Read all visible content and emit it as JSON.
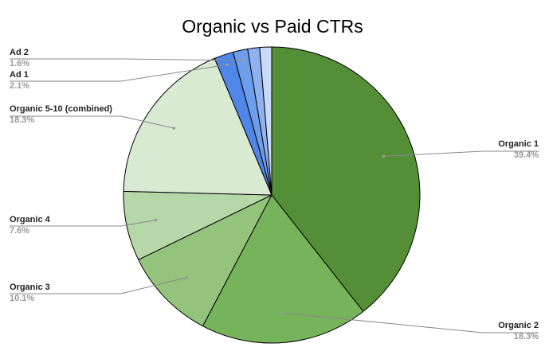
{
  "chart_data": {
    "type": "pie",
    "title": "Organic vs Paid CTRs",
    "slices": [
      {
        "label": "Organic 1",
        "value": 39.4,
        "value_label": "39.4%",
        "color": "#548f38"
      },
      {
        "label": "Organic 2",
        "value": 18.3,
        "value_label": "18.3%",
        "color": "#76b45b"
      },
      {
        "label": "Organic 3",
        "value": 10.1,
        "value_label": "10.1%",
        "color": "#94c47c"
      },
      {
        "label": "Organic 4",
        "value": 7.6,
        "value_label": "7.6%",
        "color": "#b6d7a8"
      },
      {
        "label": "Organic 5-10 (combined)",
        "value": 18.3,
        "value_label": "18.3%",
        "color": "#d9ead3"
      },
      {
        "label": "Ad 1",
        "value": 2.1,
        "value_label": "2.1%",
        "color": "#4f86e8"
      },
      {
        "label": "Ad 2",
        "value": 1.6,
        "value_label": "1.6%",
        "color": "#6d9eeb"
      },
      {
        "label": "",
        "value": 1.3,
        "value_label": "",
        "color": "#8fb1ef"
      },
      {
        "label": "",
        "value": 1.3,
        "value_label": "",
        "color": "#c9d9f8"
      }
    ],
    "legend": "none",
    "label_style": "leader-lines"
  }
}
